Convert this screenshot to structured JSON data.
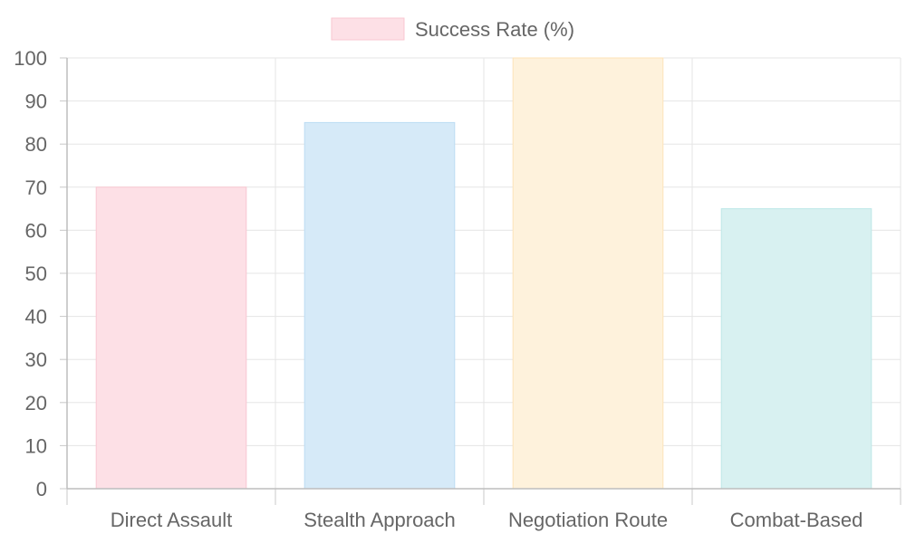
{
  "chart_data": {
    "type": "bar",
    "title": "",
    "xlabel": "",
    "ylabel": "",
    "categories": [
      "Direct Assault",
      "Stealth Approach",
      "Negotiation Route",
      "Combat-Based"
    ],
    "series": [
      {
        "name": "Success Rate (%)",
        "values": [
          70,
          85,
          100,
          65
        ]
      }
    ],
    "bar_colors": [
      "#fde0e6",
      "#d6eaf8",
      "#fef2dc",
      "#d8f1f1"
    ],
    "bar_border_colors": [
      "#f9c7d1",
      "#bcdcf3",
      "#fde3b9",
      "#bfe8e8"
    ],
    "ylim": [
      0,
      100
    ],
    "yticks": [
      0,
      10,
      20,
      30,
      40,
      50,
      60,
      70,
      80,
      90,
      100
    ],
    "grid": true,
    "legend": {
      "position": "top-center",
      "label": "Success Rate (%)",
      "swatch_color": "#fde0e6",
      "swatch_border_color": "#f9c7d1"
    }
  }
}
